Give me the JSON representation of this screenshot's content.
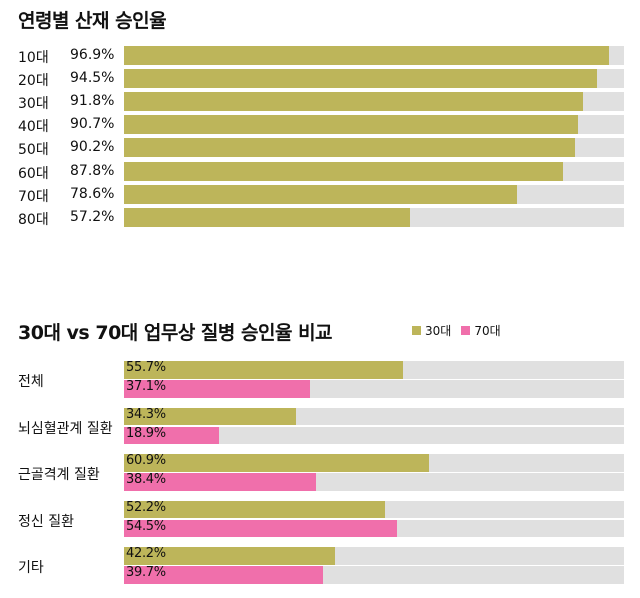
{
  "chart_data": [
    {
      "type": "bar",
      "orientation": "horizontal",
      "title": "연령별 산재 승인율",
      "categories": [
        "10대",
        "20대",
        "30대",
        "40대",
        "50대",
        "60대",
        "70대",
        "80대"
      ],
      "values": [
        96.9,
        94.5,
        91.8,
        90.7,
        90.2,
        87.8,
        78.6,
        57.2
      ],
      "value_labels": [
        "96.9%",
        "94.5%",
        "91.8%",
        "90.7%",
        "90.2%",
        "87.8%",
        "78.6%",
        "57.2%"
      ],
      "xlim": [
        0,
        100
      ],
      "color": "#bdb55a",
      "track_color": "#e0e0e0"
    },
    {
      "type": "bar",
      "orientation": "horizontal",
      "title": "30대 vs 70대 업무상 질병 승인율 비교",
      "categories": [
        "전체",
        "뇌심혈관계 질환",
        "근골격계 질환",
        "정신 질환",
        "기타"
      ],
      "series": [
        {
          "name": "30대",
          "color": "#bdb55a",
          "values": [
            55.7,
            34.3,
            60.9,
            52.2,
            42.2
          ],
          "value_labels": [
            "55.7%",
            "34.3%",
            "60.9%",
            "52.2%",
            "42.2%"
          ]
        },
        {
          "name": "70대",
          "color": "#f06fab",
          "values": [
            37.1,
            18.9,
            38.4,
            54.5,
            39.7
          ],
          "value_labels": [
            "37.1%",
            "18.9%",
            "38.4%",
            "54.5%",
            "39.7%"
          ]
        }
      ],
      "xlim": [
        0,
        100
      ],
      "legend": "top-right",
      "track_color": "#e0e0e0"
    }
  ]
}
